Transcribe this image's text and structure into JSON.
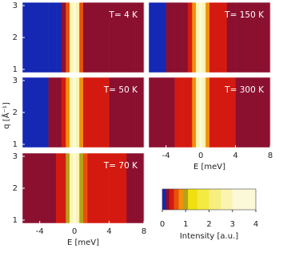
{
  "chart_data": [
    {
      "type": "heatmap",
      "label": "T= 4 K",
      "x": [
        -5.5,
        -4.5,
        -3.5,
        -2.5,
        -1.75,
        -1.25,
        -0.75,
        -0.375,
        0,
        0.375,
        0.75,
        1.25,
        1.75,
        2.5,
        3.5,
        4.5,
        5.5,
        6.5,
        7.5
      ],
      "values": [
        0.05,
        0.05,
        0.05,
        0.05,
        0.1,
        0.2,
        0.6,
        2.5,
        4,
        2.5,
        0.6,
        0.25,
        0.2,
        0.2,
        0.2,
        0.15,
        0.15,
        0.2,
        0.2
      ],
      "xlim": [
        -6,
        8
      ],
      "ylim": [
        0.9,
        3.1
      ],
      "yticks": [
        1,
        2,
        3
      ]
    },
    {
      "type": "heatmap",
      "label": "T= 150 K",
      "x": [
        -5.5,
        -4.5,
        -3.5,
        -2.5,
        -1.75,
        -1.25,
        -0.75,
        -0.375,
        0,
        0.375,
        0.75,
        1.25,
        1.75,
        2.5,
        3.5,
        4.5,
        5.5,
        6.5,
        7.5
      ],
      "values": [
        0.1,
        0.1,
        0.15,
        0.2,
        0.25,
        0.3,
        0.7,
        2.5,
        4,
        2.5,
        0.7,
        0.35,
        0.3,
        0.3,
        0.25,
        0.2,
        0.2,
        0.2,
        0.2
      ],
      "xlim": [
        -6,
        8
      ],
      "ylim": [
        0.9,
        3.1
      ]
    },
    {
      "type": "heatmap",
      "label": "T= 50 K",
      "x": [
        -5.5,
        -4.5,
        -3.5,
        -2.5,
        -1.75,
        -1.25,
        -0.75,
        -0.375,
        0,
        0.375,
        0.75,
        1.25,
        1.75,
        2.5,
        3.5,
        4.5,
        5.5,
        6.5,
        7.5
      ],
      "values": [
        0.05,
        0.05,
        0.1,
        0.15,
        0.2,
        0.3,
        0.7,
        2.5,
        4,
        2.5,
        0.8,
        0.4,
        0.35,
        0.3,
        0.3,
        0.25,
        0.2,
        0.2,
        0.2
      ],
      "xlim": [
        -6,
        8
      ],
      "ylim": [
        0.9,
        3.1
      ],
      "yticks": [
        1,
        2,
        3
      ],
      "ylabel": "q [Å⁻¹]"
    },
    {
      "type": "heatmap",
      "label": "T= 300 K",
      "x": [
        -5.5,
        -4.5,
        -3.5,
        -2.5,
        -1.75,
        -1.25,
        -0.75,
        -0.375,
        0,
        0.375,
        0.75,
        1.25,
        1.75,
        2.5,
        3.5,
        4.5,
        5.5,
        6.5,
        7.5
      ],
      "values": [
        0.2,
        0.2,
        0.25,
        0.3,
        0.35,
        0.4,
        0.8,
        2.5,
        4,
        2.5,
        0.8,
        0.4,
        0.35,
        0.3,
        0.3,
        0.25,
        0.25,
        0.2,
        0.2
      ],
      "xlim": [
        -6,
        8
      ],
      "ylim": [
        0.9,
        3.1
      ],
      "xticks": [
        -4,
        0,
        4,
        8
      ],
      "xlabel": "E [meV]"
    },
    {
      "type": "heatmap",
      "label": "T= 70 K",
      "x": [
        -5.5,
        -4.5,
        -3.5,
        -2.5,
        -1.75,
        -1.25,
        -0.75,
        -0.375,
        0,
        0.375,
        0.75,
        1.25,
        1.75,
        2.5,
        3.5,
        4.5,
        5.5,
        6.5,
        7.5
      ],
      "values": [
        0.15,
        0.15,
        0.2,
        0.25,
        0.35,
        0.45,
        0.9,
        2.5,
        4,
        2.5,
        0.95,
        0.5,
        0.45,
        0.4,
        0.35,
        0.3,
        0.3,
        0.25,
        0.25
      ],
      "xlim": [
        -6,
        8
      ],
      "ylim": [
        0.9,
        3.1
      ],
      "yticks": [
        1,
        2,
        3
      ],
      "xticks": [
        -4,
        0,
        4,
        8
      ],
      "xlabel": "E [meV]"
    },
    {
      "type": "colorbar",
      "label": "Intensity [a.u.]",
      "stops": [
        0,
        0.15,
        0.3,
        0.5,
        0.7,
        0.9,
        1.1,
        1.5,
        2,
        2.5,
        3,
        4
      ],
      "colors": [
        "#1428b4",
        "#8b1030",
        "#d41a10",
        "#e8500c",
        "#f0900c",
        "#b4a21a",
        "#f0e010",
        "#f5ea40",
        "#f7ee80",
        "#faf4b0",
        "#fcf9d8"
      ],
      "xlim": [
        0,
        4
      ],
      "xticks": [
        0,
        1,
        2,
        3,
        4
      ]
    }
  ]
}
